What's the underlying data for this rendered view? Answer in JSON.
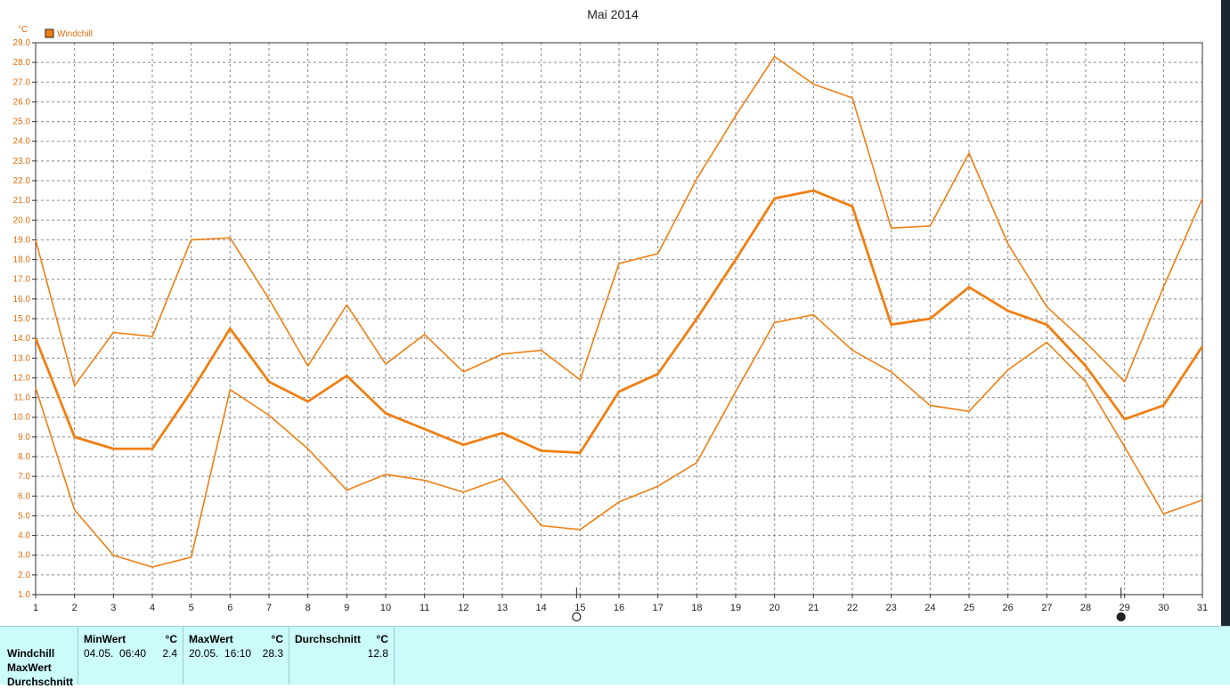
{
  "chart_data": {
    "type": "line",
    "title": "Mai 2014",
    "ylabel": "°C",
    "ylim": [
      1.0,
      29.0
    ],
    "ytick_step": 1.0,
    "xlim": [
      1,
      31
    ],
    "x": [
      1,
      2,
      3,
      4,
      5,
      6,
      7,
      8,
      9,
      10,
      11,
      12,
      13,
      14,
      15,
      16,
      17,
      18,
      19,
      20,
      21,
      22,
      23,
      24,
      25,
      26,
      27,
      28,
      29,
      30,
      31
    ],
    "legend": {
      "label": "Windchill",
      "position": "top-left"
    },
    "grid": true,
    "color": "#f07f12",
    "series": [
      {
        "role": "max",
        "width": 1.6,
        "values": [
          19.0,
          11.6,
          14.3,
          14.1,
          19.0,
          19.1,
          16.0,
          12.6,
          15.7,
          12.7,
          14.2,
          12.3,
          13.2,
          13.4,
          11.9,
          17.8,
          18.3,
          22.1,
          25.3,
          28.3,
          26.9,
          26.2,
          19.6,
          19.7,
          23.4,
          18.8,
          15.6,
          13.8,
          11.8,
          16.6,
          21.1
        ]
      },
      {
        "role": "mean",
        "width": 2.8,
        "values": [
          14.0,
          9.0,
          8.4,
          8.4,
          11.3,
          14.5,
          11.8,
          10.8,
          12.1,
          10.2,
          9.4,
          8.6,
          9.2,
          8.3,
          8.2,
          11.3,
          12.2,
          15.0,
          18.0,
          21.1,
          21.5,
          20.7,
          14.7,
          15.0,
          16.6,
          15.4,
          14.7,
          12.6,
          9.9,
          10.6,
          13.6
        ]
      },
      {
        "role": "min",
        "width": 1.6,
        "values": [
          11.5,
          5.3,
          3.0,
          2.4,
          2.9,
          11.4,
          10.1,
          8.4,
          6.3,
          7.1,
          6.8,
          6.2,
          6.9,
          4.5,
          4.3,
          5.7,
          6.5,
          7.7,
          11.3,
          14.8,
          15.2,
          13.4,
          12.3,
          10.6,
          10.3,
          12.4,
          13.8,
          11.8,
          8.5,
          5.1,
          5.8
        ]
      }
    ],
    "moon_phases": [
      {
        "day": 15,
        "phase": "full"
      },
      {
        "day": 29,
        "phase": "new"
      }
    ]
  },
  "stats": {
    "row_labels": [
      "Windchill",
      "MaxWert",
      "Durchschnitt"
    ],
    "min": {
      "header": "MinWert",
      "unit": "°C",
      "time": "04.05.  06:40",
      "value": "2.4"
    },
    "max": {
      "header": "MaxWert",
      "unit": "°C",
      "time": "20.05.  16:10",
      "value": "28.3"
    },
    "avg": {
      "header": "Durchschnitt",
      "unit": "°C",
      "value": "12.8"
    }
  }
}
